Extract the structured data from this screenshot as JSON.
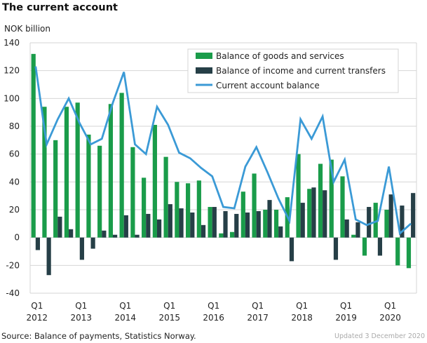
{
  "title": "The current account",
  "source": "Source: Balance of payments, Statistics Norway.",
  "updated": "Updated 3 December 2020",
  "chart_data": {
    "type": "bar",
    "title": "The current account",
    "ylabel": "NOK billion",
    "ylim": [
      -40,
      140
    ],
    "yticks": [
      -40,
      -20,
      0,
      20,
      40,
      60,
      80,
      100,
      120,
      140
    ],
    "grid": true,
    "legend": "top-right",
    "x_tick_labels": [
      {
        "q": "Q1",
        "year": "2012"
      },
      {
        "q": "Q1",
        "year": "2013"
      },
      {
        "q": "Q1",
        "year": "2014"
      },
      {
        "q": "Q1",
        "year": "2015"
      },
      {
        "q": "Q1",
        "year": "2016"
      },
      {
        "q": "Q1",
        "year": "2017"
      },
      {
        "q": "Q1",
        "year": "2018"
      },
      {
        "q": "Q1",
        "year": "2019"
      },
      {
        "q": "Q1",
        "year": "2020"
      }
    ],
    "categories": [
      "2012Q1",
      "2012Q2",
      "2012Q3",
      "2012Q4",
      "2013Q1",
      "2013Q2",
      "2013Q3",
      "2013Q4",
      "2014Q1",
      "2014Q2",
      "2014Q3",
      "2014Q4",
      "2015Q1",
      "2015Q2",
      "2015Q3",
      "2015Q4",
      "2016Q1",
      "2016Q2",
      "2016Q3",
      "2016Q4",
      "2017Q1",
      "2017Q2",
      "2017Q3",
      "2017Q4",
      "2018Q1",
      "2018Q2",
      "2018Q3",
      "2018Q4",
      "2019Q1",
      "2019Q2",
      "2019Q3",
      "2019Q4",
      "2020Q1",
      "2020Q2",
      "2020Q3"
    ],
    "series": [
      {
        "name": "Balance of goods and services",
        "type": "bar",
        "color": "#1a9c4a",
        "values": [
          132,
          94,
          70,
          94,
          97,
          74,
          66,
          96,
          104,
          65,
          43,
          81,
          58,
          40,
          39,
          41,
          22,
          3,
          4,
          33,
          46,
          20,
          20,
          29,
          60,
          35,
          53,
          56,
          44,
          2,
          -13,
          25,
          20,
          -20,
          -22
        ]
      },
      {
        "name": "Balance of income and current transfers",
        "type": "bar",
        "color": "#263f47",
        "values": [
          -9,
          -27,
          15,
          6,
          -16,
          -8,
          5,
          2,
          16,
          2,
          17,
          13,
          24,
          21,
          18,
          9,
          22,
          19,
          17,
          18,
          19,
          27,
          8,
          -17,
          25,
          36,
          34,
          -16,
          13,
          11,
          22,
          -13,
          31,
          23,
          32
        ]
      },
      {
        "name": "Current account balance",
        "type": "line",
        "color": "#3b9ad6",
        "values": [
          123,
          67,
          85,
          100,
          82,
          67,
          71,
          97,
          119,
          67,
          60,
          94,
          81,
          61,
          57,
          50,
          44,
          22,
          21,
          51,
          65,
          47,
          28,
          12,
          85,
          71,
          87,
          40,
          56,
          13,
          9,
          12,
          51,
          3,
          10
        ]
      }
    ]
  }
}
